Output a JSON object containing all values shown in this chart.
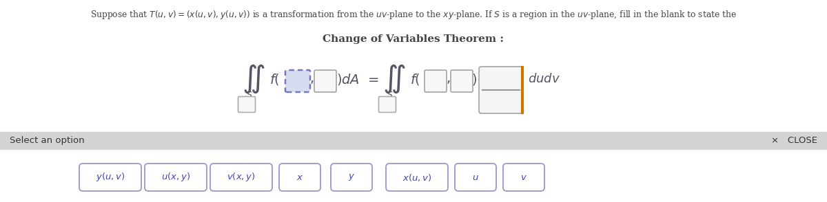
{
  "bg_color": "#ffffff",
  "select_bar_color": "#d4d4d4",
  "header_text": "Suppose that $T(u, v) = (x(u,v), y(u, v))$ is a transformation from the $uv$-plane to the $xy$-plane. If $S$ is a region in the $uv$-plane, fill in the blank to state the",
  "title": "Change of Variables Theorem :",
  "select_text": "Select an option",
  "close_text": "×   CLOSE",
  "options": [
    "$y(u, v)$",
    "$u(x, y)$",
    "$v(x, y)$",
    "$x$",
    "$y$",
    "$x(u, v)$",
    "$u$",
    "$v$"
  ],
  "option_text_color": "#4444bb",
  "option_border_color": "#9999cc",
  "text_color": "#444444",
  "highlight_fill": "#d8dcf0",
  "highlight_border": "#7777bb",
  "box_fill": "#f8f8f8",
  "box_border": "#aaaaaa",
  "jac_fill": "#f5f5f5",
  "orange_color": "#cc7700",
  "formula_color": "#555566",
  "iint_size": 22,
  "f_size": 14,
  "eq_size": 14,
  "dudv_size": 13,
  "sub_S_size": 9
}
